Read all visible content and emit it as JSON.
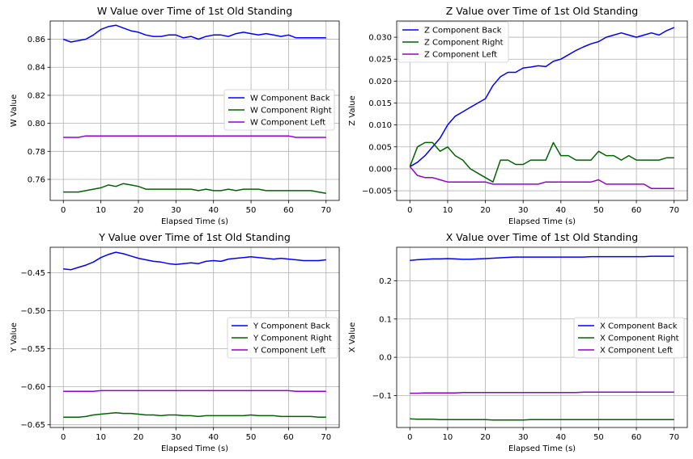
{
  "chart_data": [
    {
      "type": "line",
      "title": "W Value over Time of 1st Old Standing",
      "xlabel": "Elapsed Time (s)",
      "ylabel": "W Value",
      "xlim": [
        -3.5,
        73.5
      ],
      "ylim": [
        0.745,
        0.873
      ],
      "xticks": [
        0,
        10,
        20,
        30,
        40,
        50,
        60,
        70
      ],
      "yticks": [
        0.76,
        0.78,
        0.8,
        0.82,
        0.84,
        0.86
      ],
      "ytick_labels": [
        "0.76",
        "0.78",
        "0.80",
        "0.82",
        "0.84",
        "0.86"
      ],
      "grid": true,
      "legend": "center-right",
      "x": [
        0,
        2,
        4,
        6,
        8,
        10,
        12,
        14,
        16,
        18,
        20,
        22,
        24,
        26,
        28,
        30,
        32,
        34,
        36,
        38,
        40,
        42,
        44,
        46,
        48,
        50,
        52,
        54,
        56,
        58,
        60,
        62,
        64,
        66,
        68,
        70
      ],
      "series": [
        {
          "name": "W Component Back",
          "color": "#0000ff",
          "values": [
            0.86,
            0.858,
            0.859,
            0.86,
            0.863,
            0.867,
            0.869,
            0.87,
            0.868,
            0.866,
            0.865,
            0.863,
            0.862,
            0.862,
            0.863,
            0.863,
            0.861,
            0.862,
            0.86,
            0.862,
            0.863,
            0.863,
            0.862,
            0.864,
            0.865,
            0.864,
            0.863,
            0.864,
            0.863,
            0.862,
            0.863,
            0.861,
            0.861,
            0.861,
            0.861,
            0.861
          ]
        },
        {
          "name": "W Component Right",
          "color": "#006400",
          "values": [
            0.751,
            0.751,
            0.751,
            0.752,
            0.753,
            0.754,
            0.756,
            0.755,
            0.757,
            0.756,
            0.755,
            0.753,
            0.753,
            0.753,
            0.753,
            0.753,
            0.753,
            0.753,
            0.752,
            0.753,
            0.752,
            0.752,
            0.753,
            0.752,
            0.753,
            0.753,
            0.753,
            0.752,
            0.752,
            0.752,
            0.752,
            0.752,
            0.752,
            0.752,
            0.751,
            0.75
          ]
        },
        {
          "name": "W Component Left",
          "color": "#9400d3",
          "values": [
            0.79,
            0.79,
            0.79,
            0.791,
            0.791,
            0.791,
            0.791,
            0.791,
            0.791,
            0.791,
            0.791,
            0.791,
            0.791,
            0.791,
            0.791,
            0.791,
            0.791,
            0.791,
            0.791,
            0.791,
            0.791,
            0.791,
            0.791,
            0.791,
            0.791,
            0.791,
            0.791,
            0.791,
            0.791,
            0.791,
            0.791,
            0.79,
            0.79,
            0.79,
            0.79,
            0.79
          ]
        }
      ]
    },
    {
      "type": "line",
      "title": "Z Value over Time of 1st Old Standing",
      "xlabel": "Elapsed Time (s)",
      "ylabel": "Z Value",
      "xlim": [
        -3.5,
        73.5
      ],
      "ylim": [
        -0.0072,
        0.0337
      ],
      "xticks": [
        0,
        10,
        20,
        30,
        40,
        50,
        60,
        70
      ],
      "yticks": [
        -0.005,
        0.0,
        0.005,
        0.01,
        0.015,
        0.02,
        0.025,
        0.03
      ],
      "ytick_labels": [
        "−0.005",
        "0.000",
        "0.005",
        "0.010",
        "0.015",
        "0.020",
        "0.025",
        "0.030"
      ],
      "grid": true,
      "legend": "top-left",
      "x": [
        0,
        2,
        4,
        6,
        8,
        10,
        12,
        14,
        16,
        18,
        20,
        22,
        24,
        26,
        28,
        30,
        32,
        34,
        36,
        38,
        40,
        42,
        44,
        46,
        48,
        50,
        52,
        54,
        56,
        58,
        60,
        62,
        64,
        66,
        68,
        70
      ],
      "series": [
        {
          "name": "Z Component Back",
          "color": "#0000ff",
          "values": [
            0.0005,
            0.0015,
            0.003,
            0.005,
            0.007,
            0.01,
            0.012,
            0.013,
            0.014,
            0.015,
            0.016,
            0.019,
            0.021,
            0.022,
            0.022,
            0.023,
            0.0232,
            0.0235,
            0.0233,
            0.0245,
            0.025,
            0.026,
            0.027,
            0.0278,
            0.0285,
            0.029,
            0.03,
            0.0305,
            0.031,
            0.0305,
            0.03,
            0.0305,
            0.031,
            0.0305,
            0.0315,
            0.0322
          ]
        },
        {
          "name": "Z Component Right",
          "color": "#006400",
          "values": [
            0.0005,
            0.005,
            0.006,
            0.006,
            0.004,
            0.005,
            0.003,
            0.002,
            0.0,
            -0.001,
            -0.002,
            -0.003,
            0.002,
            0.002,
            0.001,
            0.001,
            0.002,
            0.002,
            0.002,
            0.006,
            0.003,
            0.003,
            0.002,
            0.002,
            0.002,
            0.004,
            0.003,
            0.003,
            0.002,
            0.003,
            0.002,
            0.002,
            0.002,
            0.002,
            0.0025,
            0.0025
          ]
        },
        {
          "name": "Z Component Left",
          "color": "#9400d3",
          "values": [
            0.0005,
            -0.0015,
            -0.002,
            -0.002,
            -0.0025,
            -0.003,
            -0.003,
            -0.003,
            -0.003,
            -0.003,
            -0.003,
            -0.0035,
            -0.0035,
            -0.0035,
            -0.0035,
            -0.0035,
            -0.0035,
            -0.0035,
            -0.003,
            -0.003,
            -0.003,
            -0.003,
            -0.003,
            -0.003,
            -0.003,
            -0.0025,
            -0.0035,
            -0.0035,
            -0.0035,
            -0.0035,
            -0.0035,
            -0.0035,
            -0.0045,
            -0.0045,
            -0.0045,
            -0.0045
          ]
        }
      ]
    },
    {
      "type": "line",
      "title": "Y Value over Time of 1st Old Standing",
      "xlabel": "Elapsed Time (s)",
      "ylabel": "Y Value",
      "xlim": [
        -3.5,
        73.5
      ],
      "ylim": [
        -0.6535,
        -0.4165
      ],
      "xticks": [
        0,
        10,
        20,
        30,
        40,
        50,
        60,
        70
      ],
      "yticks": [
        -0.65,
        -0.6,
        -0.55,
        -0.5,
        -0.45
      ],
      "ytick_labels": [
        "−0.65",
        "−0.60",
        "−0.55",
        "−0.50",
        "−0.45"
      ],
      "grid": true,
      "legend": "center-right",
      "x": [
        0,
        2,
        4,
        6,
        8,
        10,
        12,
        14,
        16,
        18,
        20,
        22,
        24,
        26,
        28,
        30,
        32,
        34,
        36,
        38,
        40,
        42,
        44,
        46,
        48,
        50,
        52,
        54,
        56,
        58,
        60,
        62,
        64,
        66,
        68,
        70
      ],
      "series": [
        {
          "name": "Y Component Back",
          "color": "#0000ff",
          "values": [
            -0.445,
            -0.446,
            -0.443,
            -0.44,
            -0.436,
            -0.43,
            -0.426,
            -0.423,
            -0.425,
            -0.428,
            -0.431,
            -0.433,
            -0.435,
            -0.436,
            -0.438,
            -0.439,
            -0.438,
            -0.437,
            -0.438,
            -0.435,
            -0.434,
            -0.435,
            -0.432,
            -0.431,
            -0.43,
            -0.429,
            -0.43,
            -0.431,
            -0.432,
            -0.431,
            -0.432,
            -0.433,
            -0.434,
            -0.434,
            -0.434,
            -0.433
          ]
        },
        {
          "name": "Y Component Right",
          "color": "#006400",
          "values": [
            -0.64,
            -0.64,
            -0.64,
            -0.639,
            -0.637,
            -0.636,
            -0.635,
            -0.634,
            -0.635,
            -0.635,
            -0.636,
            -0.637,
            -0.637,
            -0.638,
            -0.637,
            -0.637,
            -0.638,
            -0.638,
            -0.639,
            -0.638,
            -0.638,
            -0.638,
            -0.638,
            -0.638,
            -0.638,
            -0.637,
            -0.638,
            -0.638,
            -0.638,
            -0.639,
            -0.639,
            -0.639,
            -0.639,
            -0.639,
            -0.64,
            -0.64
          ]
        },
        {
          "name": "Y Component Left",
          "color": "#9400d3",
          "values": [
            -0.606,
            -0.606,
            -0.606,
            -0.606,
            -0.606,
            -0.605,
            -0.605,
            -0.605,
            -0.605,
            -0.605,
            -0.605,
            -0.605,
            -0.605,
            -0.605,
            -0.605,
            -0.605,
            -0.605,
            -0.605,
            -0.605,
            -0.605,
            -0.605,
            -0.605,
            -0.605,
            -0.605,
            -0.605,
            -0.605,
            -0.605,
            -0.605,
            -0.605,
            -0.605,
            -0.605,
            -0.606,
            -0.606,
            -0.606,
            -0.606,
            -0.606
          ]
        }
      ]
    },
    {
      "type": "line",
      "title": "X Value over Time of 1st Old Standing",
      "xlabel": "Elapsed Time (s)",
      "ylabel": "X Value",
      "xlim": [
        -3.5,
        73.5
      ],
      "ylim": [
        -0.1835,
        0.2875
      ],
      "xticks": [
        0,
        10,
        20,
        30,
        40,
        50,
        60,
        70
      ],
      "yticks": [
        -0.1,
        0.0,
        0.1,
        0.2
      ],
      "ytick_labels": [
        "−0.1",
        "0.0",
        "0.1",
        "0.2"
      ],
      "grid": true,
      "legend": "center-right",
      "x": [
        0,
        2,
        4,
        6,
        8,
        10,
        12,
        14,
        16,
        18,
        20,
        22,
        24,
        26,
        28,
        30,
        32,
        34,
        36,
        38,
        40,
        42,
        44,
        46,
        48,
        50,
        52,
        54,
        56,
        58,
        60,
        62,
        64,
        66,
        68,
        70
      ],
      "series": [
        {
          "name": "X Component Back",
          "color": "#0000ff",
          "values": [
            0.253,
            0.255,
            0.256,
            0.257,
            0.257,
            0.258,
            0.257,
            0.256,
            0.256,
            0.257,
            0.258,
            0.259,
            0.26,
            0.261,
            0.262,
            0.262,
            0.262,
            0.262,
            0.262,
            0.262,
            0.262,
            0.262,
            0.262,
            0.262,
            0.263,
            0.263,
            0.263,
            0.263,
            0.263,
            0.263,
            0.263,
            0.263,
            0.264,
            0.264,
            0.264,
            0.264
          ]
        },
        {
          "name": "X Component Right",
          "color": "#006400",
          "values": [
            -0.161,
            -0.162,
            -0.162,
            -0.162,
            -0.163,
            -0.163,
            -0.163,
            -0.163,
            -0.163,
            -0.163,
            -0.163,
            -0.164,
            -0.164,
            -0.164,
            -0.164,
            -0.164,
            -0.163,
            -0.163,
            -0.163,
            -0.163,
            -0.163,
            -0.163,
            -0.163,
            -0.163,
            -0.163,
            -0.163,
            -0.163,
            -0.163,
            -0.163,
            -0.163,
            -0.163,
            -0.163,
            -0.163,
            -0.163,
            -0.163,
            -0.163
          ]
        },
        {
          "name": "X Component Left",
          "color": "#9400d3",
          "values": [
            -0.094,
            -0.094,
            -0.093,
            -0.093,
            -0.093,
            -0.093,
            -0.093,
            -0.092,
            -0.092,
            -0.092,
            -0.092,
            -0.092,
            -0.092,
            -0.092,
            -0.092,
            -0.092,
            -0.092,
            -0.092,
            -0.092,
            -0.092,
            -0.092,
            -0.092,
            -0.092,
            -0.091,
            -0.091,
            -0.091,
            -0.091,
            -0.091,
            -0.091,
            -0.091,
            -0.091,
            -0.091,
            -0.091,
            -0.091,
            -0.091,
            -0.091
          ]
        }
      ]
    }
  ]
}
